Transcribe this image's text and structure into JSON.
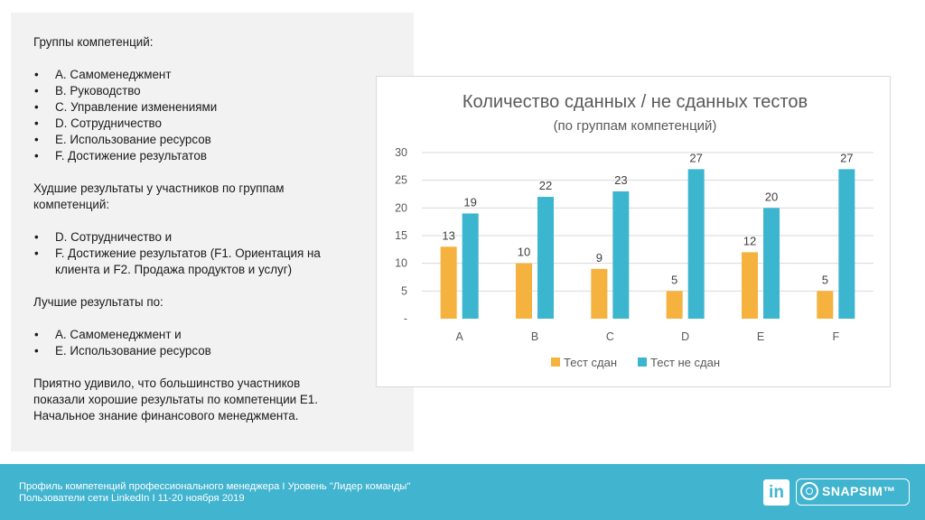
{
  "left": {
    "groups_title": "Группы компетенций:",
    "groups": [
      "A. Самоменеджмент",
      "B. Руководство",
      "C. Управление изменениями",
      "D. Сотрудничество",
      "E. Использование ресурсов",
      "F. Достижение результатов"
    ],
    "worst_title": "Худшие результаты у участников по группам компетенций:",
    "worst": [
      "D. Сотрудничество и",
      "F. Достижение результатов (F1. Ориентация на клиента и F2. Продажа продуктов и услуг)"
    ],
    "best_title": "Лучшие результаты по:",
    "best": [
      "A. Самоменеджмент и",
      "E. Использование ресурсов"
    ],
    "conclusion": "Приятно удивило, что большинство участников показали хорошие результаты по компетенции E1. Начальное знание финансового менеджмента."
  },
  "chart_data": {
    "type": "bar",
    "title": "Количество сданных / не сданных тестов",
    "subtitle": "(по группам компетенций)",
    "categories": [
      "A",
      "B",
      "C",
      "D",
      "E",
      "F"
    ],
    "series": [
      {
        "name": "Тест сдан",
        "values": [
          13,
          10,
          9,
          5,
          12,
          5
        ],
        "color": "#f6b23e"
      },
      {
        "name": "Тест не сдан",
        "values": [
          19,
          22,
          23,
          27,
          20,
          27
        ],
        "color": "#3cb5cf"
      }
    ],
    "ylim": [
      0,
      30
    ],
    "yticks": [
      "-",
      "5",
      "10",
      "15",
      "20",
      "25",
      "30"
    ],
    "grid": true,
    "legend_position": "bottom"
  },
  "footer": {
    "line1": "Профиль компетенций профессионального менеджера  I  Уровень \"Лидер команды\"",
    "line2": "Пользователи сети LinkedIn  I  11-20 ноября 2019",
    "linkedin_label": "in",
    "logo_text": "SNAPSIM™"
  }
}
